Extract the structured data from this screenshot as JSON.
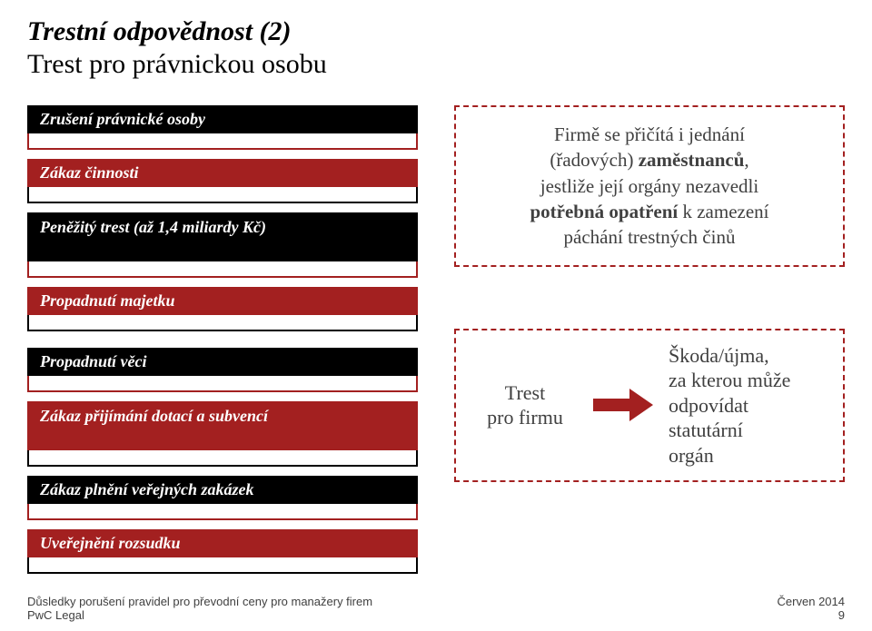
{
  "colors": {
    "maroon": "#a32020",
    "black": "#000000",
    "dash": "#a32020",
    "text": "#404040"
  },
  "title": {
    "main": "Trestní odpovědnost (2)",
    "sub": "Trest pro právnickou osobu"
  },
  "pills_top": [
    {
      "label": "Zrušení právnické osoby",
      "bar": "#000000",
      "frame": "#a32020",
      "tall": false
    },
    {
      "label": "Zákaz činnosti",
      "bar": "#a32020",
      "frame": "#000000",
      "tall": false
    },
    {
      "label": "Peněžitý trest (až 1,4 miliardy Kč)",
      "bar": "#000000",
      "frame": "#a32020",
      "tall": true
    },
    {
      "label": "Propadnutí majetku",
      "bar": "#a32020",
      "frame": "#000000",
      "tall": false
    }
  ],
  "pills_bottom": [
    {
      "label": "Propadnutí věci",
      "bar": "#000000",
      "frame": "#a32020",
      "tall": false
    },
    {
      "label": "Zákaz přijímání dotací a subvencí",
      "bar": "#a32020",
      "frame": "#000000",
      "tall": true
    },
    {
      "label": "Zákaz plnění veřejných zakázek",
      "bar": "#000000",
      "frame": "#a32020",
      "tall": false
    },
    {
      "label": "Uveřejnění rozsudku",
      "bar": "#a32020",
      "frame": "#000000",
      "tall": false
    }
  ],
  "info_box": {
    "line1_a": "Firmě se přičítá i jednání",
    "line2_a": "(řadových) ",
    "line2_b": "zaměstnanců",
    "line2_c": ",",
    "line3": "jestliže její orgány nezavedli",
    "line4_a": "potřebná opatření",
    "line4_b": " k zamezení",
    "line5": "páchání trestných činů"
  },
  "result": {
    "left1": "Trest",
    "left2": "pro firmu",
    "right1": "Škoda/újma,",
    "right2": "za kterou může",
    "right3": "odpovídat",
    "right4": "statutární",
    "right5": "orgán",
    "arrow_color": "#a32020"
  },
  "footer": {
    "left1": "Důsledky porušení pravidel pro převodní ceny pro manažery firem",
    "left2": "PwC Legal",
    "right1": "Červen 2014",
    "right2": "9"
  }
}
